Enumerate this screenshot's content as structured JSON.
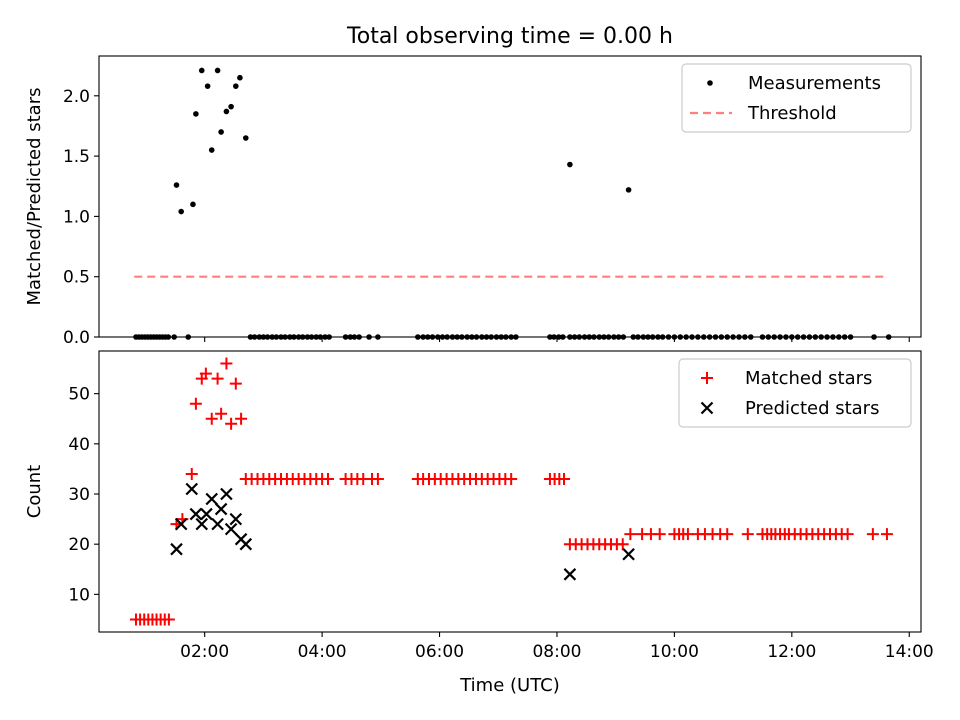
{
  "figure": {
    "title": "Total observing time = 0.00 h",
    "xlabel": "Time (UTC)"
  },
  "chart_data": [
    {
      "type": "scatter",
      "ylabel": "Matched/Predicted stars",
      "xlim": [
        0.2,
        14.2
      ],
      "ylim": [
        0,
        2.33
      ],
      "xticks": [
        2,
        4,
        6,
        8,
        10,
        12,
        14
      ],
      "xtick_labels": [
        "02:00",
        "04:00",
        "06:00",
        "08:00",
        "10:00",
        "12:00",
        "14:00"
      ],
      "show_xtick_labels": false,
      "yticks": [
        0.0,
        0.5,
        1.0,
        1.5,
        2.0
      ],
      "ytick_labels": [
        "0.0",
        "0.5",
        "1.0",
        "1.5",
        "2.0"
      ],
      "legend_position": "top-right",
      "grid": false,
      "series": [
        {
          "name": "Measurements",
          "kind": "dot",
          "color": "#000000",
          "x": [
            0.83,
            0.88,
            0.93,
            0.98,
            1.03,
            1.08,
            1.13,
            1.18,
            1.23,
            1.28,
            1.33,
            1.38,
            1.48,
            1.72,
            1.52,
            1.6,
            1.8,
            1.85,
            1.95,
            2.05,
            2.12,
            2.22,
            2.28,
            2.37,
            2.45,
            2.53,
            2.6,
            2.7,
            2.78,
            2.85,
            2.93,
            3.0,
            3.07,
            3.15,
            3.22,
            3.3,
            3.37,
            3.45,
            3.52,
            3.6,
            3.67,
            3.75,
            3.82,
            3.9,
            3.97,
            4.05,
            4.12,
            4.4,
            4.48,
            4.55,
            4.63,
            4.8,
            4.95,
            5.63,
            5.72,
            5.8,
            5.88,
            5.97,
            6.05,
            6.13,
            6.22,
            6.3,
            6.38,
            6.47,
            6.55,
            6.63,
            6.72,
            6.8,
            6.88,
            6.97,
            7.05,
            7.13,
            7.22,
            7.3,
            7.88,
            7.95,
            8.03,
            8.1,
            8.22,
            8.22,
            8.3,
            8.38,
            8.47,
            8.55,
            8.63,
            8.72,
            8.8,
            8.88,
            8.97,
            9.05,
            9.13,
            9.22,
            9.3,
            9.38,
            9.47,
            9.55,
            9.63,
            9.72,
            9.8,
            9.9,
            10.0,
            10.1,
            10.2,
            10.3,
            10.4,
            10.5,
            10.6,
            10.7,
            10.8,
            10.9,
            11.0,
            11.1,
            11.2,
            11.3,
            11.5,
            11.6,
            11.7,
            11.8,
            11.9,
            12.0,
            12.1,
            12.2,
            12.3,
            12.4,
            12.5,
            12.6,
            12.7,
            12.8,
            12.9,
            13.0,
            13.4,
            13.65
          ],
          "y": [
            0,
            0,
            0,
            0,
            0,
            0,
            0,
            0,
            0,
            0,
            0,
            0,
            0,
            0,
            1.26,
            1.04,
            1.1,
            1.85,
            2.21,
            2.08,
            1.55,
            2.21,
            1.7,
            1.87,
            1.91,
            2.08,
            2.15,
            1.65,
            0,
            0,
            0,
            0,
            0,
            0,
            0,
            0,
            0,
            0,
            0,
            0,
            0,
            0,
            0,
            0,
            0,
            0,
            0,
            0,
            0,
            0,
            0,
            0,
            0,
            0,
            0,
            0,
            0,
            0,
            0,
            0,
            0,
            0,
            0,
            0,
            0,
            0,
            0,
            0,
            0,
            0,
            0,
            0,
            0,
            0,
            0,
            0,
            0,
            0,
            1.43,
            0,
            0,
            0,
            0,
            0,
            0,
            0,
            0,
            0,
            0,
            0,
            0,
            1.22,
            0,
            0,
            0,
            0,
            0,
            0,
            0,
            0,
            0,
            0,
            0,
            0,
            0,
            0,
            0,
            0,
            0,
            0,
            0,
            0,
            0,
            0,
            0,
            0,
            0,
            0,
            0,
            0,
            0,
            0,
            0,
            0,
            0,
            0,
            0,
            0,
            0,
            0,
            0,
            0
          ]
        },
        {
          "name": "Threshold",
          "kind": "dashed-line",
          "color": "#ff7f7f",
          "x": [
            0.8,
            13.62
          ],
          "y": [
            0.5,
            0.5
          ]
        }
      ]
    },
    {
      "type": "scatter",
      "ylabel": "Count",
      "xlim": [
        0.2,
        14.2
      ],
      "ylim": [
        2.5,
        58.5
      ],
      "xticks": [
        2,
        4,
        6,
        8,
        10,
        12,
        14
      ],
      "xtick_labels": [
        "02:00",
        "04:00",
        "06:00",
        "08:00",
        "10:00",
        "12:00",
        "14:00"
      ],
      "show_xtick_labels": true,
      "yticks": [
        10,
        20,
        30,
        40,
        50
      ],
      "ytick_labels": [
        "10",
        "20",
        "30",
        "40",
        "50"
      ],
      "legend_position": "top-right",
      "grid": false,
      "series": [
        {
          "name": "Matched stars",
          "kind": "plus",
          "color": "#ff0000",
          "x": [
            0.83,
            0.9,
            0.97,
            1.04,
            1.11,
            1.18,
            1.25,
            1.32,
            1.39,
            1.52,
            1.62,
            1.78,
            1.85,
            1.95,
            2.02,
            2.12,
            2.22,
            2.28,
            2.37,
            2.45,
            2.53,
            2.62,
            2.7,
            2.8,
            2.9,
            3.0,
            3.1,
            3.2,
            3.3,
            3.4,
            3.5,
            3.6,
            3.7,
            3.8,
            3.9,
            4.0,
            4.1,
            4.4,
            4.5,
            4.6,
            4.7,
            4.85,
            4.95,
            5.63,
            5.72,
            5.82,
            5.92,
            6.02,
            6.12,
            6.22,
            6.32,
            6.42,
            6.52,
            6.62,
            6.72,
            6.82,
            6.92,
            7.02,
            7.12,
            7.22,
            7.88,
            7.96,
            8.04,
            8.12,
            8.22,
            8.32,
            8.42,
            8.52,
            8.62,
            8.72,
            8.82,
            8.92,
            9.02,
            9.12,
            9.25,
            9.45,
            9.6,
            9.75,
            10.0,
            10.08,
            10.15,
            10.23,
            10.4,
            10.52,
            10.65,
            10.78,
            10.9,
            11.25,
            11.5,
            11.58,
            11.65,
            11.72,
            11.8,
            11.88,
            11.95,
            12.05,
            12.15,
            12.25,
            12.35,
            12.45,
            12.55,
            12.65,
            12.75,
            12.85,
            12.95,
            13.38,
            13.62
          ],
          "y": [
            5,
            5,
            5,
            5,
            5,
            5,
            5,
            5,
            5,
            24,
            25,
            34,
            48,
            53,
            54,
            45,
            53,
            46,
            56,
            44,
            52,
            45,
            33,
            33,
            33,
            33,
            33,
            33,
            33,
            33,
            33,
            33,
            33,
            33,
            33,
            33,
            33,
            33,
            33,
            33,
            33,
            33,
            33,
            33,
            33,
            33,
            33,
            33,
            33,
            33,
            33,
            33,
            33,
            33,
            33,
            33,
            33,
            33,
            33,
            33,
            33,
            33,
            33,
            33,
            20,
            20,
            20,
            20,
            20,
            20,
            20,
            20,
            20,
            20,
            22,
            22,
            22,
            22,
            22,
            22,
            22,
            22,
            22,
            22,
            22,
            22,
            22,
            22,
            22,
            22,
            22,
            22,
            22,
            22,
            22,
            22,
            22,
            22,
            22,
            22,
            22,
            22,
            22,
            22,
            22,
            22,
            22
          ]
        },
        {
          "name": "Predicted stars",
          "kind": "cross",
          "color": "#000000",
          "x": [
            1.52,
            1.6,
            1.78,
            1.85,
            1.95,
            2.03,
            2.12,
            2.22,
            2.28,
            2.37,
            2.45,
            2.53,
            2.62,
            2.7,
            8.22,
            9.22
          ],
          "y": [
            19,
            24,
            31,
            26,
            24,
            26,
            29,
            24,
            27,
            30,
            23,
            25,
            21,
            20,
            14,
            18
          ]
        }
      ]
    }
  ]
}
